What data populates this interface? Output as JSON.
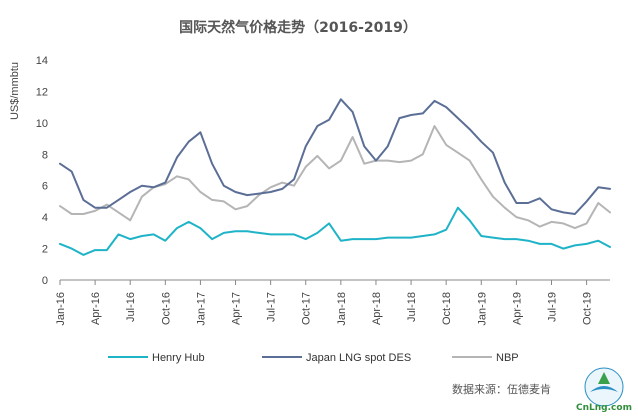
{
  "chart_data": {
    "type": "line",
    "title": "国际天然气价格走势（2016-2019）",
    "ylabel": "US$/mmbtu",
    "xlabel": "",
    "ylim": [
      0,
      14
    ],
    "yticks": [
      0,
      2,
      4,
      6,
      8,
      10,
      12,
      14
    ],
    "x": [
      "Jan-16",
      "Feb-16",
      "Mar-16",
      "Apr-16",
      "May-16",
      "Jun-16",
      "Jul-16",
      "Aug-16",
      "Sep-16",
      "Oct-16",
      "Nov-16",
      "Dec-16",
      "Jan-17",
      "Feb-17",
      "Mar-17",
      "Apr-17",
      "May-17",
      "Jun-17",
      "Jul-17",
      "Aug-17",
      "Sep-17",
      "Oct-17",
      "Nov-17",
      "Dec-17",
      "Jan-18",
      "Feb-18",
      "Mar-18",
      "Apr-18",
      "May-18",
      "Jun-18",
      "Jul-18",
      "Aug-18",
      "Sep-18",
      "Oct-18",
      "Nov-18",
      "Dec-18",
      "Jan-19",
      "Feb-19",
      "Mar-19",
      "Apr-19",
      "May-19",
      "Jun-19",
      "Jul-19",
      "Aug-19",
      "Sep-19",
      "Oct-19",
      "Nov-19",
      "Dec-19"
    ],
    "xtick_labels": [
      "Jan-16",
      "Apr-16",
      "Jul-16",
      "Oct-16",
      "Jan-17",
      "Apr-17",
      "Jul-17",
      "Oct-17",
      "Jan-18",
      "Apr-18",
      "Jul-18",
      "Oct-18",
      "Jan-19",
      "Apr-19",
      "Jul-19",
      "Oct-19"
    ],
    "series": [
      {
        "name": "Henry Hub",
        "color": "#1fb3c8",
        "values": [
          2.3,
          2.0,
          1.6,
          1.9,
          1.9,
          2.9,
          2.6,
          2.8,
          2.9,
          2.5,
          3.3,
          3.7,
          3.3,
          2.6,
          3.0,
          3.1,
          3.1,
          3.0,
          2.9,
          2.9,
          2.9,
          2.6,
          3.0,
          3.6,
          2.5,
          2.6,
          2.6,
          2.6,
          2.7,
          2.7,
          2.7,
          2.8,
          2.9,
          3.2,
          4.6,
          3.8,
          2.8,
          2.7,
          2.6,
          2.6,
          2.5,
          2.3,
          2.3,
          2.0,
          2.2,
          2.3,
          2.5,
          2.1
        ]
      },
      {
        "name": "Japan LNG spot DES",
        "color": "#5b6e96",
        "values": [
          7.4,
          6.9,
          5.1,
          4.6,
          4.6,
          5.1,
          5.6,
          6.0,
          5.9,
          6.2,
          7.8,
          8.8,
          9.4,
          7.4,
          6.0,
          5.6,
          5.4,
          5.5,
          5.6,
          5.8,
          6.4,
          8.5,
          9.8,
          10.2,
          11.5,
          10.7,
          8.5,
          7.6,
          8.5,
          10.3,
          10.5,
          10.6,
          11.4,
          11.0,
          10.3,
          9.6,
          8.8,
          8.1,
          6.2,
          4.9,
          4.9,
          5.2,
          4.5,
          4.3,
          4.2,
          5.0,
          5.9,
          5.8
        ]
      },
      {
        "name": "NBP",
        "color": "#b5b5b5",
        "values": [
          4.7,
          4.2,
          4.2,
          4.4,
          4.8,
          4.3,
          3.8,
          5.3,
          5.9,
          6.1,
          6.6,
          6.4,
          5.6,
          5.1,
          5.0,
          4.5,
          4.7,
          5.4,
          5.9,
          6.2,
          6.0,
          7.2,
          7.9,
          7.1,
          7.6,
          9.1,
          7.4,
          7.6,
          7.6,
          7.5,
          7.6,
          8.0,
          9.8,
          8.6,
          8.1,
          7.6,
          6.4,
          5.3,
          4.6,
          4.0,
          3.8,
          3.4,
          3.7,
          3.6,
          3.3,
          3.6,
          4.9,
          4.3
        ]
      }
    ],
    "grid": false,
    "legend": "bottom"
  },
  "source_text": "数据来源：伍德麦肯",
  "logo_text": "CnLng.com"
}
